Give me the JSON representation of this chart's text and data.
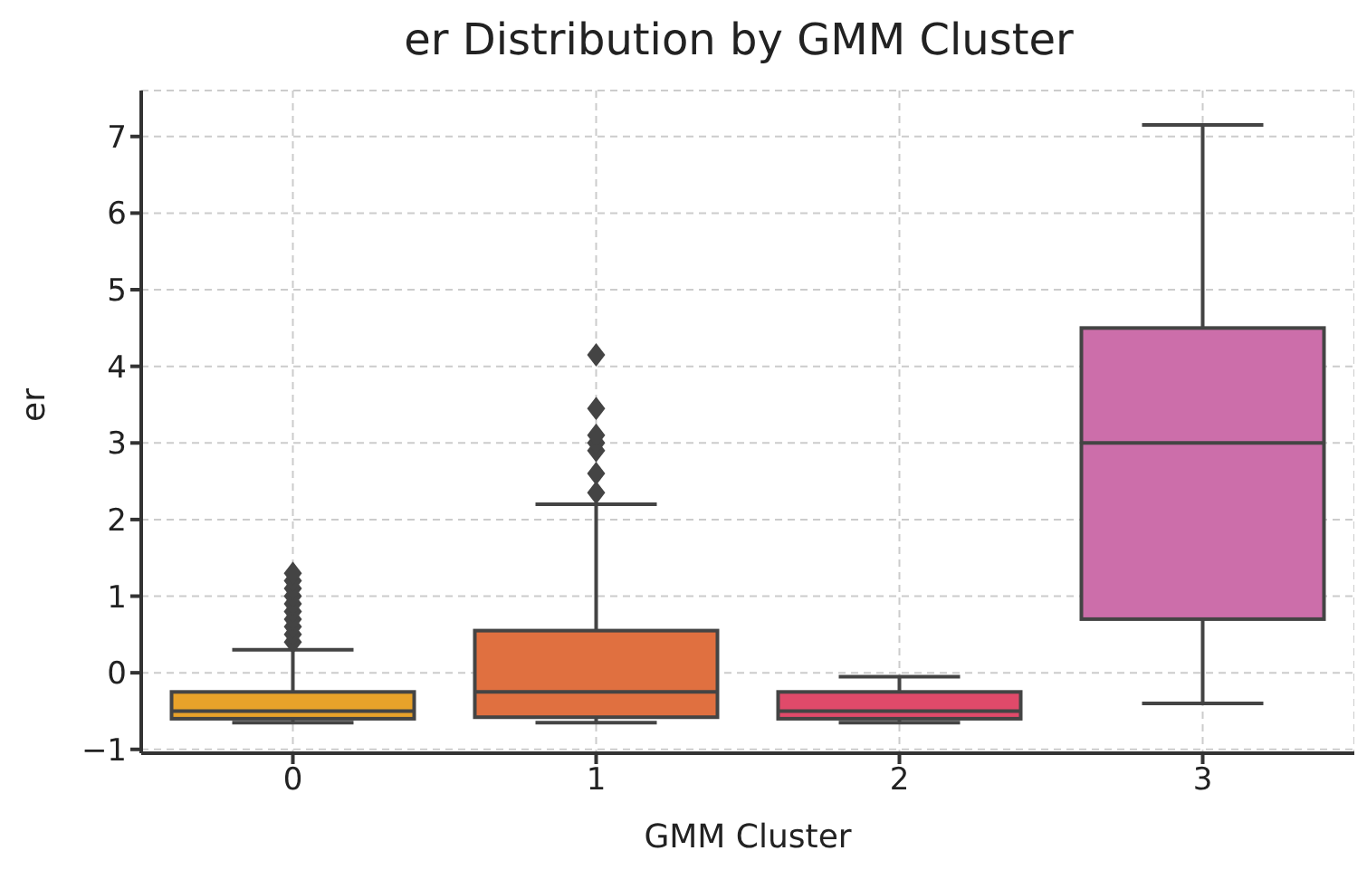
{
  "chart_data": {
    "type": "box",
    "title": "er Distribution by GMM Cluster",
    "xlabel": "GMM Cluster",
    "ylabel": "er",
    "categories": [
      "0",
      "1",
      "2",
      "3"
    ],
    "colors": [
      "#e8a22a",
      "#e07040",
      "#e04a6a",
      "#cc6eaa"
    ],
    "boxes": [
      {
        "low": -0.65,
        "q1": -0.6,
        "median": -0.5,
        "q3": -0.25,
        "high": 0.3,
        "outliers": [
          0.4,
          0.5,
          0.6,
          0.7,
          0.8,
          0.9,
          1.0,
          1.1,
          1.2,
          1.3
        ]
      },
      {
        "low": -0.65,
        "q1": -0.58,
        "median": -0.25,
        "q3": 0.55,
        "high": 2.2,
        "outliers": [
          2.35,
          2.6,
          2.9,
          3.0,
          3.1,
          3.45,
          4.15
        ]
      },
      {
        "low": -0.65,
        "q1": -0.6,
        "median": -0.5,
        "q3": -0.25,
        "high": -0.05
      },
      {
        "low": -0.4,
        "q1": 0.7,
        "median": 3.0,
        "q3": 4.5,
        "high": 7.15
      }
    ],
    "ylim": [
      -1.05,
      7.6
    ],
    "yticks": [
      -1,
      0,
      1,
      2,
      3,
      4,
      5,
      6,
      7
    ],
    "grid": true
  }
}
